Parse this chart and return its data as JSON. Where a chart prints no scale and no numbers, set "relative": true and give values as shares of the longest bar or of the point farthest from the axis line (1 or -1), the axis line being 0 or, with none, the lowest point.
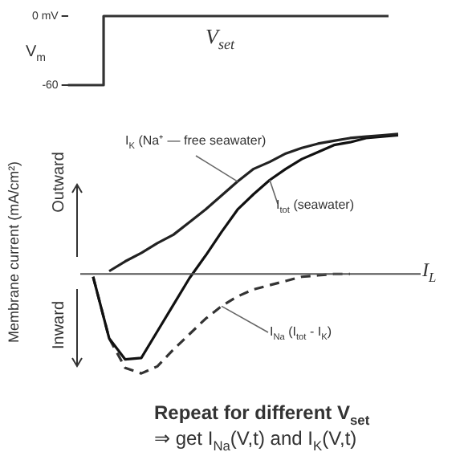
{
  "chart_data": [
    {
      "type": "step",
      "ylabel": "V$_{m}$",
      "categories": [
        null,
        null,
        null,
        null,
        null,
        null,
        null,
        null,
        null,
        null
      ],
      "values": [
        -60,
        0,
        0,
        0,
        0,
        0,
        0,
        0,
        0,
        0
      ],
      "color": "#333333",
      "ylim": [
        -60,
        0
      ],
      "yticks": [
        {
          "value": 0,
          "label": "0 mV"
        },
        -60
      ],
      "tick_labels": "y",
      "marker": "none",
      "annotations": [
        "V$_{set}$"
      ]
    },
    {
      "type": "line",
      "relative": true,
      "ylabel": "Membrane current (mA/cm²)",
      "categories": [
        null,
        null,
        null,
        null,
        null,
        null,
        null,
        null,
        null,
        null,
        null,
        null,
        null,
        null,
        null,
        null,
        null,
        null,
        null,
        null
      ],
      "tick_labels": false,
      "marker": "none",
      "series": [
        {
          "name": "I$_{K}$ (Na⁺ — free seawater)",
          "color": "#222222",
          "values": [
            null,
            0.02,
            0.09,
            0.15,
            0.22,
            0.28,
            0.37,
            0.46,
            0.56,
            0.66,
            0.75,
            0.8,
            0.86,
            0.9,
            0.93,
            0.95,
            0.97,
            0.98,
            0.99,
            1
          ]
        },
        {
          "name": "I$_{tot}$ (seawater)",
          "color": "#111111",
          "values": [
            -0.02,
            -0.46,
            -0.61,
            -0.6,
            -0.41,
            -0.22,
            -0.03,
            0.13,
            0.3,
            0.46,
            0.57,
            0.67,
            0.75,
            0.82,
            0.87,
            0.92,
            0.94,
            0.97,
            0.98,
            0.99
          ]
        },
        {
          "name": "I$_{Na}$ (I$_{tot}$ - I$_{K}$)",
          "color": "#333333",
          "line_style": "dashed",
          "values": [
            -0.02,
            -0.46,
            -0.67,
            -0.71,
            -0.66,
            -0.54,
            -0.43,
            -0.32,
            -0.23,
            -0.16,
            -0.11,
            -0.08,
            -0.05,
            -0.02,
            -0.01,
            0,
            0,
            null,
            null,
            null
          ]
        }
      ],
      "ref_lines": [
        {
          "axis": "y",
          "value": 0,
          "label": "I$_{L}$",
          "color": "#555555"
        }
      ],
      "annotations": [
        "Outward",
        "Inward",
        "Repeat for different V$_{set}$",
        "⇒ get I$_{Na}$(V,t) and I$_{K}$(V,t)"
      ]
    }
  ]
}
